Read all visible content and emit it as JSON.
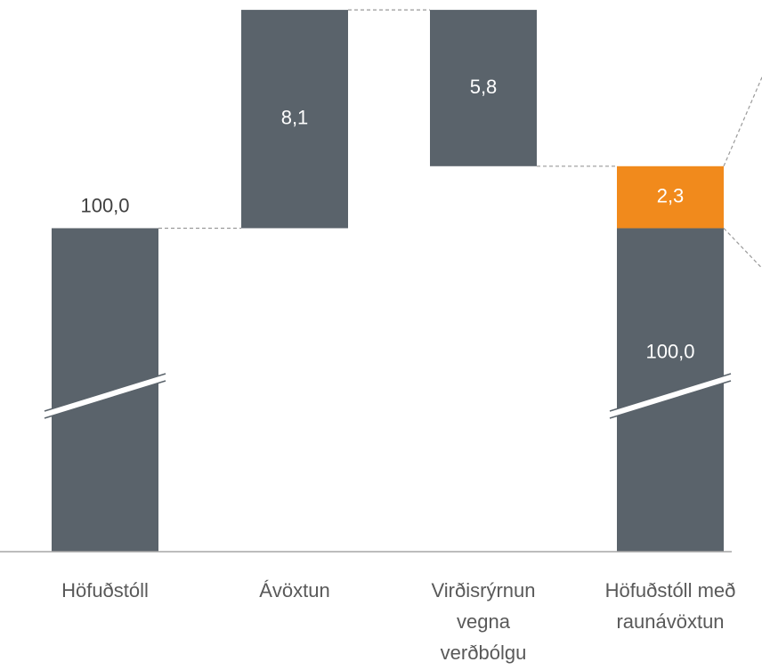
{
  "chart_data": {
    "type": "waterfall",
    "categories": [
      "Höfuðstóll",
      "Ávöxtun",
      "Virðisrýrnun vegna verðbólgu",
      "Höfuðstóll með raunávöxtun"
    ],
    "values": [
      100,
      8.1,
      -5.8,
      100
    ],
    "value_labels": [
      "100,0",
      "8,1",
      "5,8",
      "100,0"
    ],
    "final_increment": 2.3,
    "final_increment_label": "2,3",
    "color": "#5a636b",
    "increment_color": "#f18a1c",
    "ylim": [
      88,
      108.4
    ],
    "axis_break": true
  }
}
